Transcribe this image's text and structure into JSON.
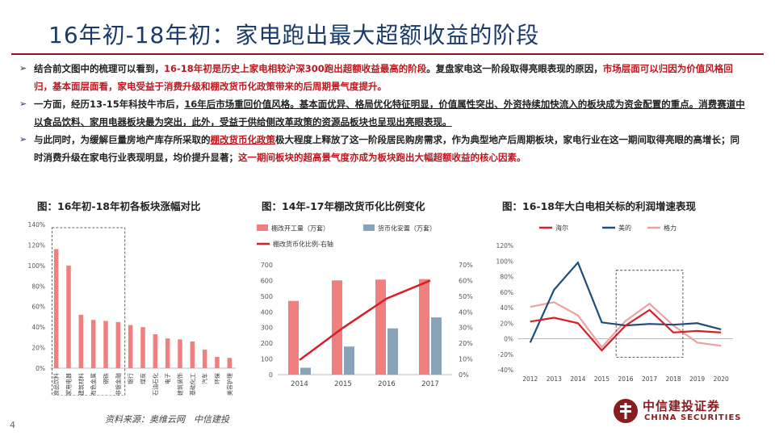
{
  "title": "16年初-18年初：家电跑出最大超额收益的阶段",
  "bullets": [
    {
      "parts": [
        {
          "t": "结合前文图中的梳理可以看到，",
          "s": "b"
        },
        {
          "t": "16-18年初是历史上家电相较沪深300跑出超额收益最高的阶段",
          "s": "red"
        },
        {
          "t": "。复盘家电这一阶段取得亮眼表现的原因，",
          "s": "b"
        },
        {
          "t": "市场层面可以归因为价值风格回归，基本面层面看，家电受益于消费升级和棚改货币化政策带来的后周期景气度提升。",
          "s": "red"
        }
      ]
    },
    {
      "parts": [
        {
          "t": "一方面，经历13-15年科技牛市后，",
          "s": "b"
        },
        {
          "t": "16年后市场重回价值风格",
          "s": "bu"
        },
        {
          "t": "。基本面优异、格局优化特征明显，价值属性突出、外资持续加快流入的板块成为资金配置的重点。消费赛道中以食品饮料、家用电器板块最为突出，此外，受益于供给侧改革政策的资源品板块也呈现出亮眼表现。",
          "s": "bu"
        }
      ]
    },
    {
      "parts": [
        {
          "t": "与此同时，为缓解巨量房地产库存所采取的",
          "s": "b"
        },
        {
          "t": "棚改货币化政策",
          "s": "redu"
        },
        {
          "t": "极大程度上释放了这一阶段居民购房需求，作为典型地产后周期板块，家电行业在这一期间取得亮眼的高增长；同时消费升级在家电行业表现明显，均价提升显著；",
          "s": "b"
        },
        {
          "t": "这一期间板块的超高景气度亦成为板块跑出大幅超额收益的核心因素。",
          "s": "red"
        }
      ]
    }
  ],
  "captions": {
    "c1": "图：16年初-18年初各板块涨幅对比",
    "c2": "图：14年-17年棚改货币化比例变化",
    "c3": "图：16-18年大白电相关标的利润增速表现"
  },
  "chart_data": [
    {
      "type": "bar",
      "categories": [
        "食品饮料",
        "家用电器",
        "建筑材料",
        "有色金属",
        "钢铁",
        "非银金融",
        "银行",
        "煤炭",
        "石油石化",
        "电子",
        "建筑装饰",
        "基础化工",
        "汽车",
        "环保",
        "美容护理"
      ],
      "values": [
        116,
        100,
        52,
        47,
        46,
        45,
        42,
        40,
        33,
        29,
        28,
        26,
        18,
        11,
        10
      ],
      "ylim": [
        0,
        140
      ],
      "yticks": [
        "0%",
        "20%",
        "40%",
        "60%",
        "80%",
        "100%",
        "120%",
        "140%"
      ],
      "color": "#f08080"
    },
    {
      "type": "bar",
      "categories": [
        "2014",
        "2015",
        "2016",
        "2017"
      ],
      "series": [
        {
          "name": "棚改开工量（万套）",
          "values": [
            470,
            601,
            606,
            609
          ],
          "color": "#f08080"
        },
        {
          "name": "货币化安置（万套）",
          "values": [
            44,
            179,
            295,
            365
          ],
          "color": "#8aa3b9"
        },
        {
          "name": "棚改货币化比例-右轴",
          "values": [
            9.3,
            29.9,
            48.5,
            60.0
          ],
          "color": "#d61f26"
        }
      ],
      "ylim": [
        0,
        700
      ],
      "yticks": [
        "0",
        "100",
        "200",
        "300",
        "400",
        "500",
        "600",
        "700"
      ],
      "y2lim": [
        0,
        70
      ],
      "y2ticks": [
        "0%",
        "10%",
        "20%",
        "30%",
        "40%",
        "50%",
        "60%",
        "70%"
      ]
    },
    {
      "type": "line",
      "x": [
        "2012",
        "2013",
        "2014",
        "2015",
        "2016",
        "2017",
        "2018",
        "2019",
        "2020"
      ],
      "series": [
        {
          "name": "海尔",
          "values": [
            22,
            27,
            20,
            -15,
            17,
            37,
            8,
            10,
            8
          ],
          "color": "#d61f26"
        },
        {
          "name": "美的",
          "values": [
            -5,
            63,
            98,
            21,
            17,
            19,
            18,
            20,
            12
          ],
          "color": "#1f4e79"
        },
        {
          "name": "格力",
          "values": [
            41,
            47,
            30,
            -11,
            23,
            45,
            17,
            -5,
            -9
          ],
          "color": "#f0a0a0"
        }
      ],
      "ylim": [
        -40,
        120
      ],
      "yticks": [
        "-40%",
        "-20%",
        "0%",
        "20%",
        "40%",
        "60%",
        "80%",
        "100%",
        "120%"
      ]
    }
  ],
  "source": "资料来源：奥维云网　中信建投",
  "page_number": "4",
  "logo": {
    "cn": "中信建投证券",
    "en": "CHINA SECURITIES"
  }
}
